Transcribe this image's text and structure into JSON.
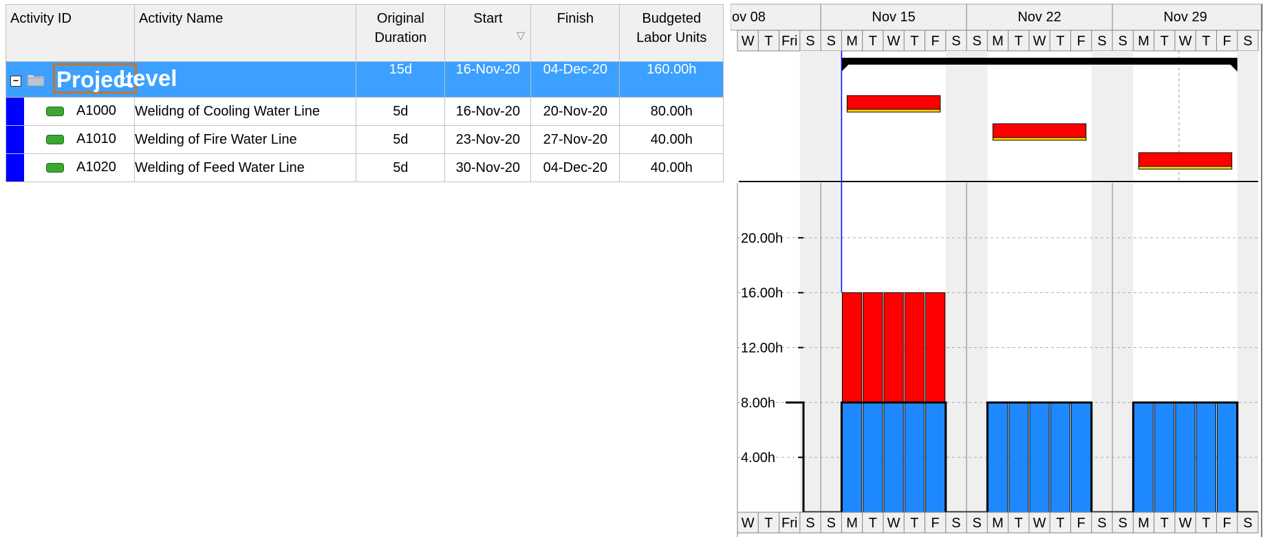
{
  "columns": {
    "activity_id": "Activity ID",
    "activity_name": "Activity Name",
    "original_duration": "Original\nDuration",
    "start": "Start",
    "finish": "Finish",
    "budgeted_labor_units": "Budgeted\nLabor Units"
  },
  "wbs": {
    "code": "Project",
    "name": "Level",
    "duration": "15d",
    "start": "16-Nov-20",
    "finish": "04-Dec-20",
    "units": "160.00h"
  },
  "activities": [
    {
      "id": "A1000",
      "name": "Welidng of Cooling Water Line",
      "duration": "5d",
      "start": "16-Nov-20",
      "finish": "20-Nov-20",
      "units": "80.00h"
    },
    {
      "id": "A1010",
      "name": "Welding of Fire Water Line",
      "duration": "5d",
      "start": "23-Nov-20",
      "finish": "27-Nov-20",
      "units": "40.00h"
    },
    {
      "id": "A1020",
      "name": "Welding of Feed Water Line",
      "duration": "5d",
      "start": "30-Nov-20",
      "finish": "04-Dec-20",
      "units": "40.00h"
    }
  ],
  "timescale": {
    "weeks": [
      "ov 08",
      "Nov 15",
      "Nov 22",
      "Nov 29"
    ],
    "days": [
      "W",
      "T",
      "Fri",
      "S",
      "S",
      "M",
      "T",
      "W",
      "T",
      "F",
      "S",
      "S",
      "M",
      "T",
      "W",
      "T",
      "F",
      "S",
      "S",
      "M",
      "T",
      "W",
      "T",
      "F",
      "S"
    ]
  },
  "histogram": {
    "y_ticks": [
      "4.00h",
      "8.00h",
      "12.00h",
      "16.00h",
      "20.00h"
    ],
    "y_values": [
      4,
      8,
      12,
      16,
      20
    ],
    "ymax": 24,
    "limit_value": 8,
    "bars": [
      {
        "day_index": 5,
        "total": 16,
        "over": 8
      },
      {
        "day_index": 6,
        "total": 16,
        "over": 8
      },
      {
        "day_index": 7,
        "total": 16,
        "over": 8
      },
      {
        "day_index": 8,
        "total": 16,
        "over": 8
      },
      {
        "day_index": 9,
        "total": 16,
        "over": 8
      },
      {
        "day_index": 12,
        "total": 8,
        "over": 0
      },
      {
        "day_index": 13,
        "total": 8,
        "over": 0
      },
      {
        "day_index": 14,
        "total": 8,
        "over": 0
      },
      {
        "day_index": 15,
        "total": 8,
        "over": 0
      },
      {
        "day_index": 16,
        "total": 8,
        "over": 0
      },
      {
        "day_index": 19,
        "total": 8,
        "over": 0
      },
      {
        "day_index": 20,
        "total": 8,
        "over": 0
      },
      {
        "day_index": 21,
        "total": 8,
        "over": 0
      },
      {
        "day_index": 22,
        "total": 8,
        "over": 0
      },
      {
        "day_index": 23,
        "total": 8,
        "over": 0
      }
    ]
  },
  "gantt_bars": [
    {
      "start_day_index": 5,
      "end_day_index": 9
    },
    {
      "start_day_index": 12,
      "end_day_index": 16
    },
    {
      "start_day_index": 19,
      "end_day_index": 23
    }
  ],
  "summary_bar": {
    "start_day_index": 5,
    "end_day_index": 23
  },
  "colors": {
    "wbs_row": "#3ba0ff",
    "gantt_bar": "#ff0000",
    "over_allocation": "#ff0000",
    "normal_allocation": "#1e88ff",
    "nonwork_shading": "#efefef",
    "data_date_line": "#0000ff"
  }
}
